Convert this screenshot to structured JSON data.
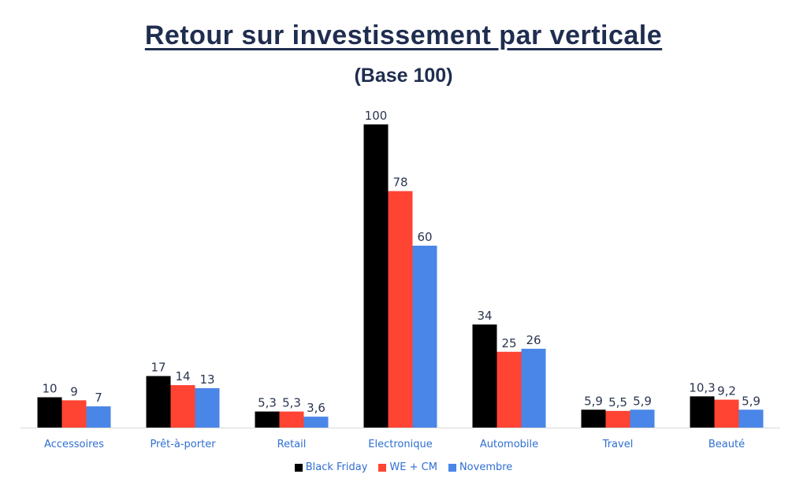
{
  "chart_data": {
    "type": "bar",
    "title": "Retour sur investissement par verticale",
    "subtitle": "(Base 100)",
    "categories": [
      "Accessoires",
      "Prêt-à-porter",
      "Retail",
      "Electronique",
      "Automobile",
      "Travel",
      "Beauté"
    ],
    "series": [
      {
        "name": "Black Friday",
        "color": "#000000",
        "values": [
          10,
          17,
          5.3,
          100,
          34,
          5.9,
          10.3
        ],
        "labels": [
          "10",
          "17",
          "5,3",
          "100",
          "34",
          "5,9",
          "10,3"
        ]
      },
      {
        "name": "WE + CM",
        "color": "#ff4433",
        "values": [
          9,
          14,
          5.3,
          78,
          25,
          5.5,
          9.2
        ],
        "labels": [
          "9",
          "14",
          "5,3",
          "78",
          "25",
          "5,5",
          "9,2"
        ]
      },
      {
        "name": "Novembre",
        "color": "#4a86e8",
        "values": [
          7,
          13,
          3.6,
          60,
          26,
          5.9,
          5.9
        ],
        "labels": [
          "7",
          "13",
          "3,6",
          "60",
          "26",
          "5,9",
          "5,9"
        ]
      }
    ],
    "ylim": [
      0,
      100
    ],
    "grid": false,
    "legend_position": "bottom"
  }
}
